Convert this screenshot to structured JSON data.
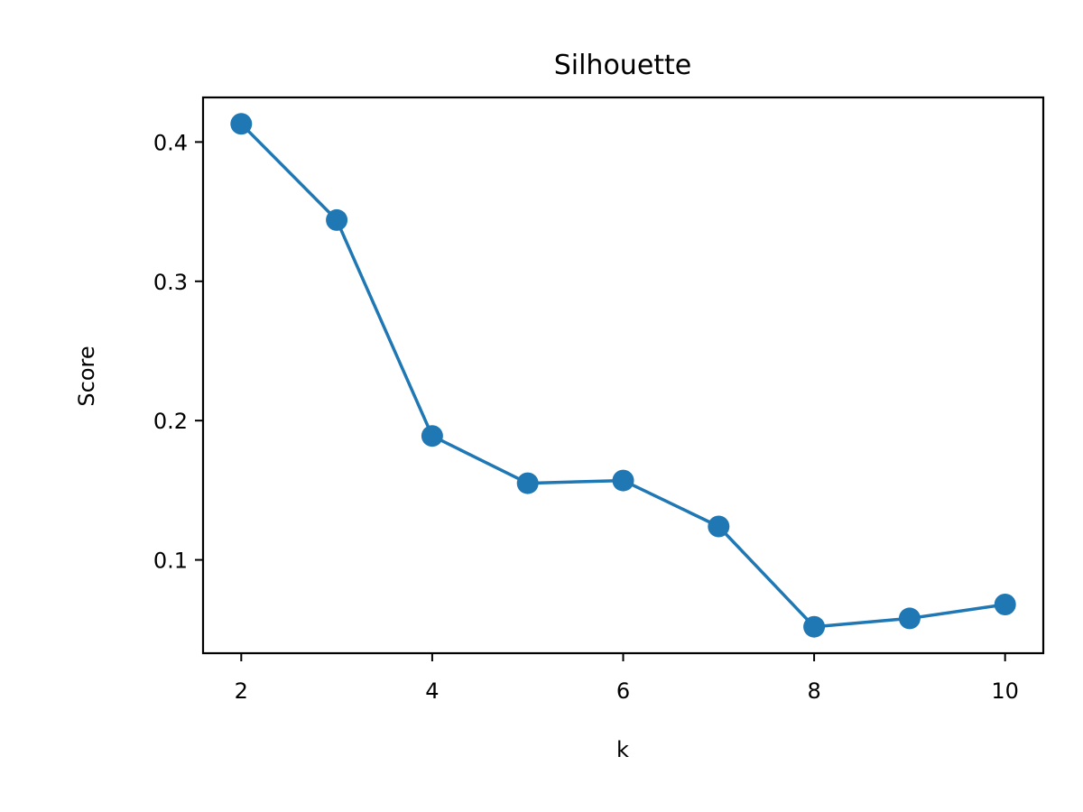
{
  "chart_data": {
    "type": "line",
    "title": "Silhouette",
    "xlabel": "k",
    "ylabel": "Score",
    "x": [
      2,
      3,
      4,
      5,
      6,
      7,
      8,
      9,
      10
    ],
    "series": [
      {
        "values": [
          0.413,
          0.344,
          0.189,
          0.155,
          0.157,
          0.124,
          0.052,
          0.058,
          0.068
        ],
        "color": "#1f77b4",
        "marker": "circle"
      }
    ],
    "xlim": [
      1.6,
      10.4
    ],
    "ylim": [
      0.033,
      0.432
    ],
    "xticks": [
      2,
      4,
      6,
      8,
      10
    ],
    "xtick_labels": [
      "2",
      "4",
      "6",
      "8",
      "10"
    ],
    "yticks": [
      0.1,
      0.2,
      0.3,
      0.4
    ],
    "ytick_labels": [
      "0.1",
      "0.2",
      "0.3",
      "0.4"
    ],
    "grid": false,
    "legend": "none"
  }
}
